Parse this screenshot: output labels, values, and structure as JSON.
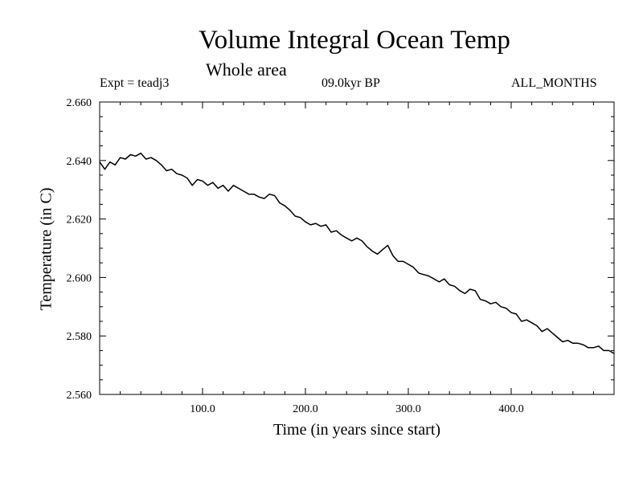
{
  "chart_data": {
    "type": "line",
    "title": "Volume Integral Ocean Temp",
    "subtitle": "Whole area",
    "experiment": "Expt = teadj3",
    "period": "09.0kyr BP",
    "months": "ALL_MONTHS",
    "xlabel": "Time (in years since start)",
    "ylabel": "Temperature (in C)",
    "xlim": [
      0,
      500
    ],
    "ylim": [
      2.56,
      2.66
    ],
    "xticks": [
      100,
      200,
      300,
      400
    ],
    "xtick_labels": [
      "100.0",
      "200.0",
      "300.0",
      "400.0"
    ],
    "yticks": [
      2.56,
      2.58,
      2.6,
      2.62,
      2.64,
      2.66
    ],
    "ytick_labels": [
      "2.560",
      "2.580",
      "2.600",
      "2.620",
      "2.640",
      "2.660"
    ],
    "grid": false,
    "series": [
      {
        "name": "Volume integral ocean temperature",
        "color": "#000000",
        "x": [
          0,
          5,
          10,
          15,
          20,
          25,
          30,
          35,
          40,
          45,
          50,
          55,
          60,
          65,
          70,
          75,
          80,
          85,
          90,
          95,
          100,
          105,
          110,
          115,
          120,
          125,
          130,
          135,
          140,
          145,
          150,
          155,
          160,
          165,
          170,
          175,
          180,
          185,
          190,
          195,
          200,
          205,
          210,
          215,
          220,
          225,
          230,
          235,
          240,
          245,
          250,
          255,
          260,
          265,
          270,
          275,
          280,
          285,
          290,
          295,
          300,
          305,
          310,
          315,
          320,
          325,
          330,
          335,
          340,
          345,
          350,
          355,
          360,
          365,
          370,
          375,
          380,
          385,
          390,
          395,
          400,
          405,
          410,
          415,
          420,
          425,
          430,
          435,
          440,
          445,
          450,
          455,
          460,
          465,
          470,
          475,
          480,
          485,
          490,
          495,
          500
        ],
        "values": [
          2.6395,
          2.637,
          2.6395,
          2.6385,
          2.641,
          2.6405,
          2.642,
          2.6415,
          2.6425,
          2.6405,
          2.641,
          2.64,
          2.6385,
          2.6365,
          2.637,
          2.6355,
          2.635,
          2.634,
          2.6315,
          2.6335,
          2.633,
          2.6315,
          2.6325,
          2.6305,
          2.6315,
          2.6295,
          2.6315,
          2.6305,
          2.6295,
          2.6285,
          2.6285,
          2.6275,
          2.627,
          2.6285,
          2.628,
          2.6255,
          2.6245,
          2.623,
          2.621,
          2.6205,
          2.619,
          2.618,
          2.6185,
          2.6175,
          2.618,
          2.6155,
          2.616,
          2.6145,
          2.6135,
          2.6125,
          2.6135,
          2.6125,
          2.6105,
          2.609,
          2.608,
          2.6095,
          2.611,
          2.6075,
          2.6055,
          2.6055,
          2.6045,
          2.6035,
          2.6015,
          2.601,
          2.6005,
          2.5995,
          2.5985,
          2.5995,
          2.5975,
          2.597,
          2.5955,
          2.5945,
          2.596,
          2.5955,
          2.5925,
          2.592,
          2.591,
          2.5915,
          2.59,
          2.5895,
          2.588,
          2.5875,
          2.585,
          2.5855,
          2.5845,
          2.5835,
          2.5815,
          2.5825,
          2.581,
          2.5795,
          2.578,
          2.5785,
          2.5775,
          2.5775,
          2.577,
          2.576,
          2.576,
          2.5765,
          2.575,
          2.575,
          2.574
        ]
      }
    ]
  }
}
